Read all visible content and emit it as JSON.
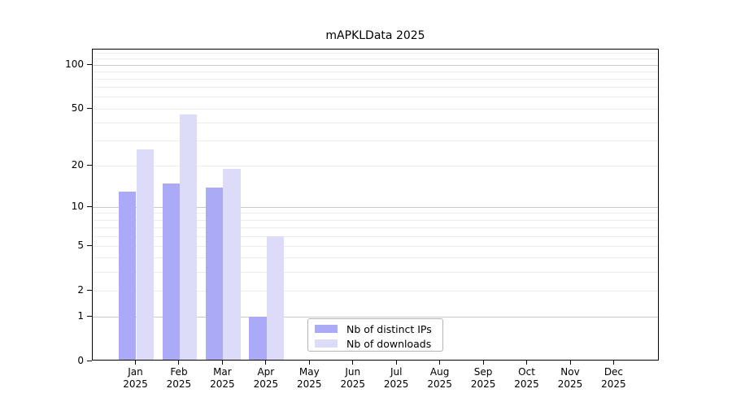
{
  "chart_data": {
    "type": "bar",
    "title": "mAPKLData 2025",
    "categories": [
      "Jan",
      "Feb",
      "Mar",
      "Apr",
      "May",
      "Jun",
      "Jul",
      "Aug",
      "Sep",
      "Oct",
      "Nov",
      "Dec"
    ],
    "category_year": "2025",
    "series": [
      {
        "name": "Nb of distinct IPs",
        "color": "#aaaaf6",
        "values": [
          13,
          15,
          14,
          1,
          0,
          0,
          0,
          0,
          0,
          0,
          0,
          0
        ]
      },
      {
        "name": "Nb of downloads",
        "color": "#dcdcf9",
        "values": [
          26,
          46,
          19,
          6,
          0,
          0,
          0,
          0,
          0,
          0,
          0,
          0
        ]
      }
    ],
    "y_ticks": [
      0,
      1,
      2,
      5,
      10,
      20,
      50,
      100
    ],
    "y_scale": "log10(value+1)",
    "ylim": [
      0,
      127
    ],
    "grid": true,
    "gridlines_major": [
      1,
      10,
      100
    ],
    "gridlines_minor": [
      2,
      3,
      4,
      5,
      6,
      7,
      8,
      9,
      20,
      30,
      40,
      50,
      60,
      70,
      80,
      90,
      110,
      120
    ],
    "legend_position": "lower center",
    "colors": {
      "axis": "#000000",
      "grid_major": "#c9c9c9",
      "grid_minor": "#ededed",
      "background": "#ffffff"
    }
  }
}
